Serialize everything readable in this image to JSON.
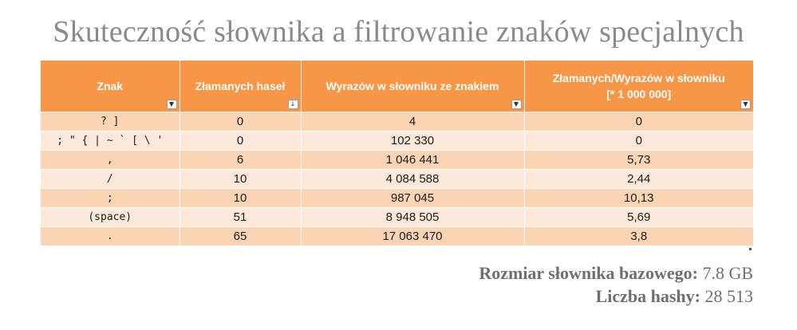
{
  "title": "Skuteczność słownika a filtrowanie znaków specjalnych",
  "table": {
    "headers": [
      {
        "label": "Znak",
        "label2": "",
        "filter_icon": "dropdown-arrow"
      },
      {
        "label": "Złamanych haseł",
        "label2": "",
        "filter_icon": "sort-dropdown"
      },
      {
        "label": "Wyrazów w słowniku ze znakiem",
        "label2": "",
        "filter_icon": "dropdown-arrow"
      },
      {
        "label": "Złamanych/Wyrazów w słowniku",
        "label2": "[* 1 000 000]",
        "filter_icon": "dropdown-arrow"
      }
    ],
    "rows": [
      [
        "? ]",
        "0",
        "4",
        "0"
      ],
      [
        "; \" { | ~ ` [ \\ '",
        "0",
        "102 330",
        "0"
      ],
      [
        ",",
        "6",
        "1 046 441",
        "5,73"
      ],
      [
        "/",
        "10",
        "4 084 588",
        "2,44"
      ],
      [
        ";",
        "10",
        "987 045",
        "10,13"
      ],
      [
        "(space)",
        "51",
        "8 948 505",
        "5,69"
      ],
      [
        ".",
        "65",
        "17 063 470",
        "3,8"
      ]
    ]
  },
  "info": {
    "dict_size_label": "Rozmiar słownika bazowego:",
    "dict_size_value": "7.8 GB",
    "hash_count_label": "Liczba hashy:",
    "hash_count_value": "28 513"
  },
  "colors": {
    "header_bg": "#f79646",
    "row_dark": "#fbd4b4",
    "row_light": "#fde9d9",
    "title": "#8a8a8a"
  }
}
